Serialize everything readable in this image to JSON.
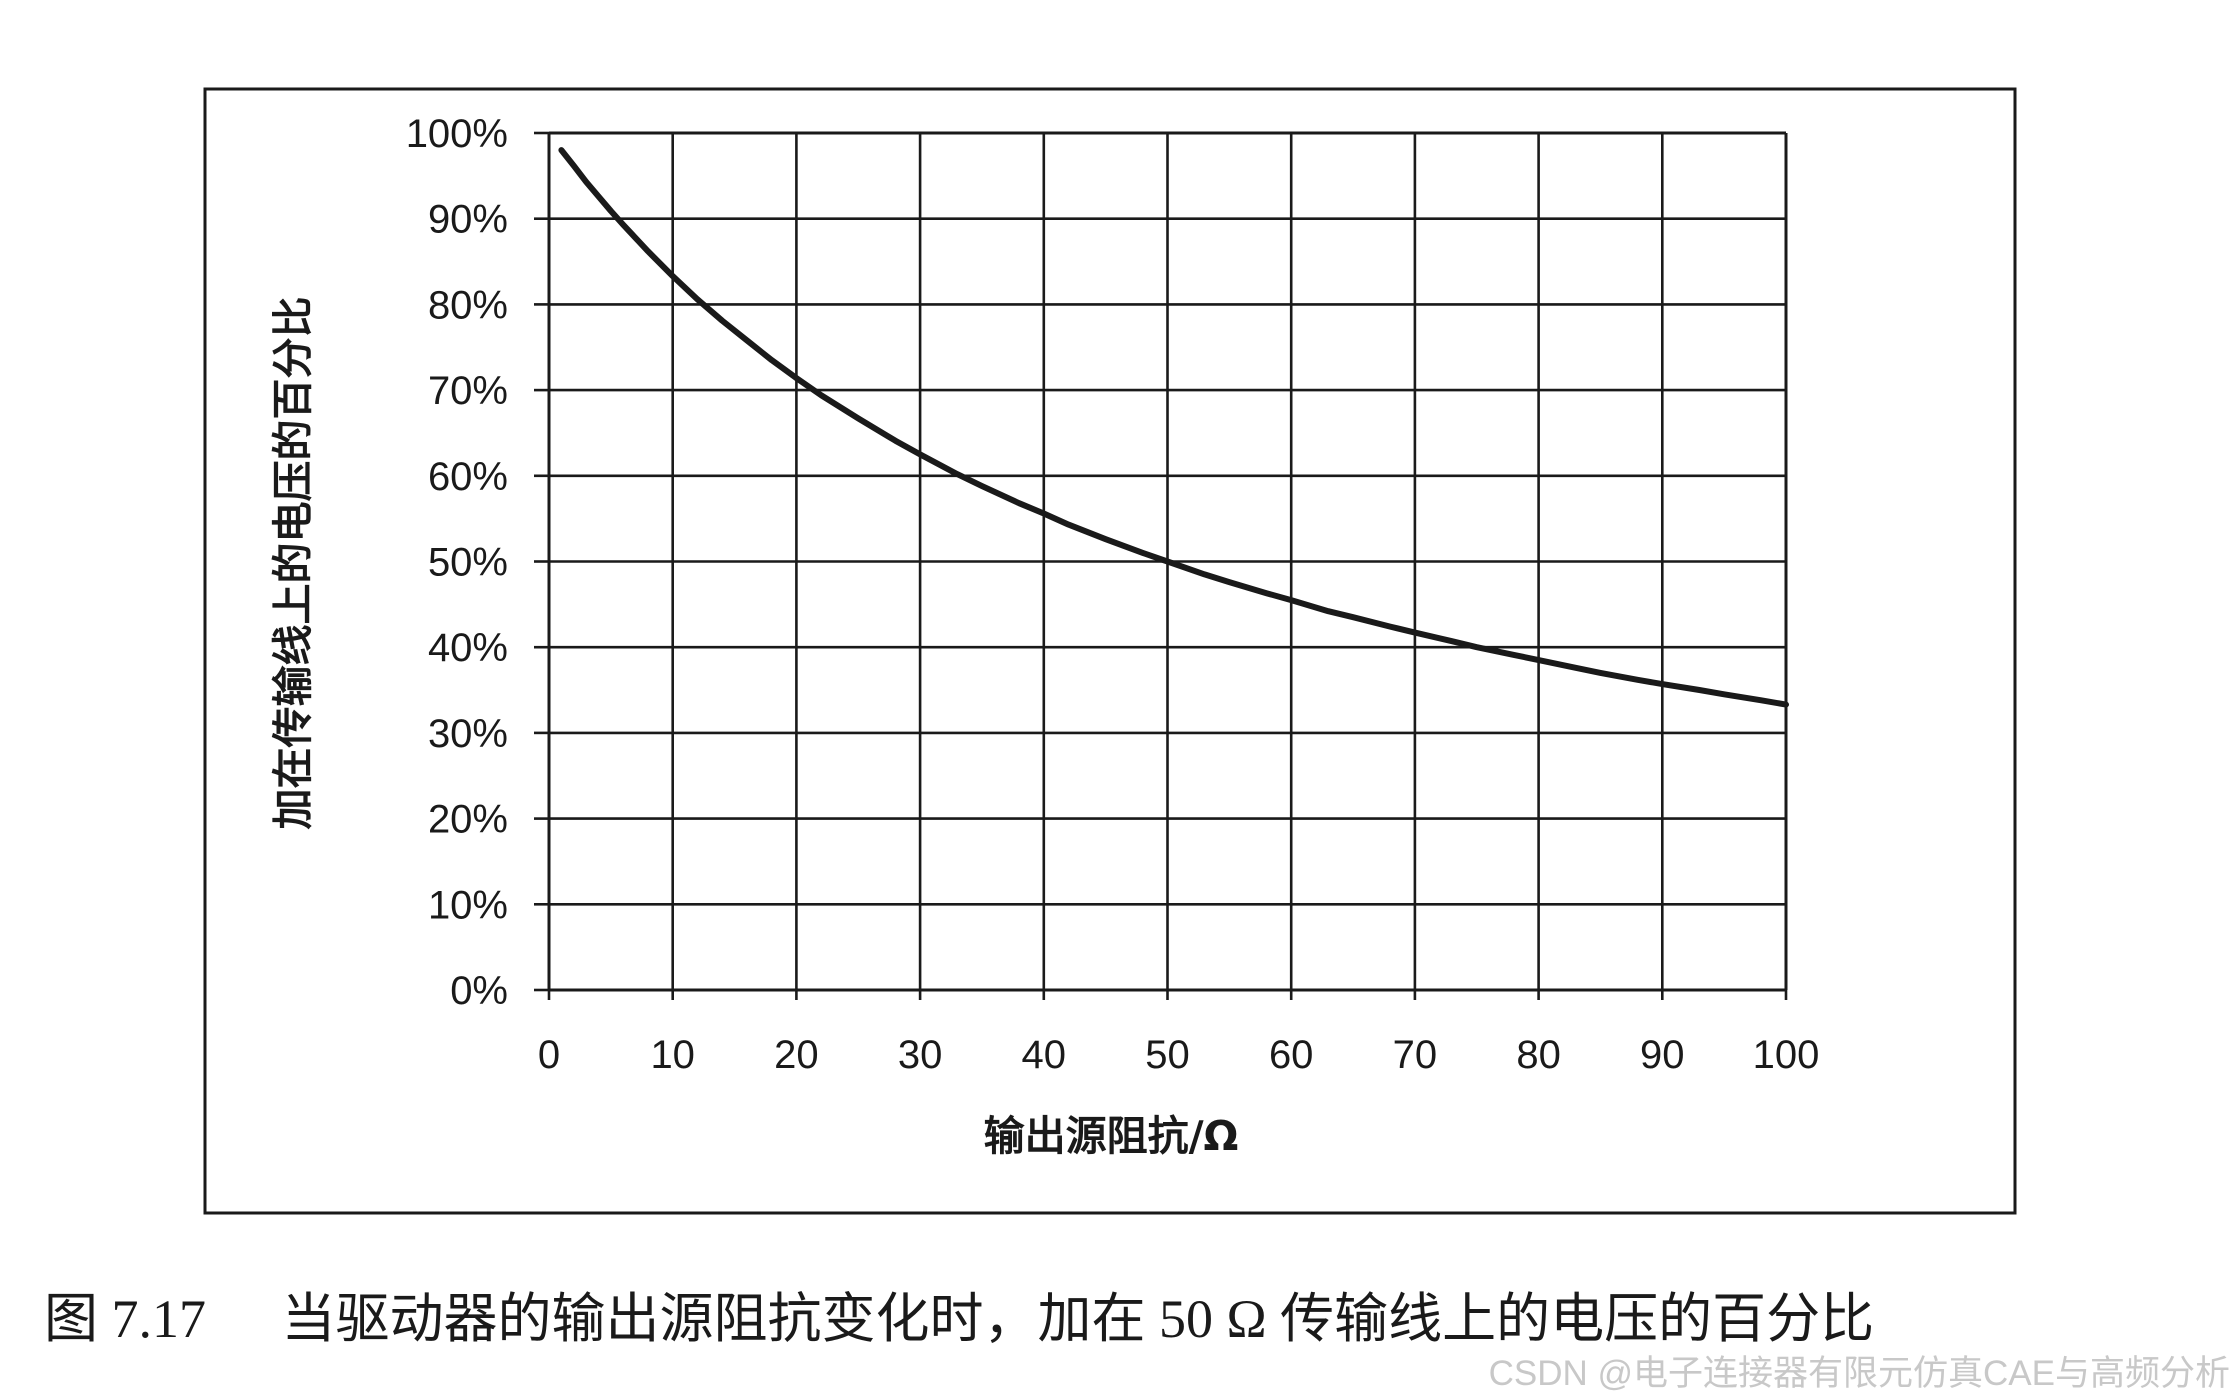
{
  "chart_data": {
    "type": "line",
    "title": "",
    "xlabel": "输出源阻抗/Ω",
    "ylabel": "加在传输线上的电压的百分比",
    "xlim": [
      0,
      100
    ],
    "ylim": [
      0,
      100
    ],
    "x_ticks": [
      "0",
      "10",
      "20",
      "30",
      "40",
      "50",
      "60",
      "70",
      "80",
      "90",
      "100"
    ],
    "y_ticks": [
      "0%",
      "10%",
      "20%",
      "30%",
      "40%",
      "50%",
      "60%",
      "70%",
      "80%",
      "90%",
      "100%"
    ],
    "grid": true,
    "legend": "none",
    "series": [
      {
        "color": "#1a1a1a",
        "x": [
          1,
          2,
          3,
          4,
          5,
          6,
          8,
          10,
          12,
          14,
          16,
          18,
          20,
          22,
          25,
          28,
          30,
          33,
          35,
          38,
          40,
          42,
          45,
          48,
          50,
          53,
          55,
          58,
          60,
          63,
          65,
          68,
          70,
          73,
          75,
          78,
          80,
          83,
          85,
          88,
          90,
          93,
          95,
          98,
          100
        ],
        "values": [
          98.0,
          96.2,
          94.3,
          92.6,
          90.9,
          89.3,
          86.2,
          83.3,
          80.6,
          78.1,
          75.8,
          73.5,
          71.4,
          69.4,
          66.7,
          64.1,
          62.5,
          60.2,
          58.8,
          56.8,
          55.6,
          54.3,
          52.6,
          51.0,
          50.0,
          48.5,
          47.6,
          46.3,
          45.5,
          44.2,
          43.5,
          42.4,
          41.7,
          40.7,
          40.0,
          39.1,
          38.5,
          37.6,
          37.0,
          36.2,
          35.7,
          35.0,
          34.5,
          33.8,
          33.3
        ]
      }
    ]
  },
  "caption": {
    "figure_no": "图 7.17",
    "text_before": "当驱动器的输出源阻抗变化时，加在 ",
    "text_value": "50 Ω",
    "text_after": " 传输线上的电压的百分比"
  },
  "watermark": "CSDN @电子连接器有限元仿真CAE与高频分析",
  "colors": {
    "frame": "#1a1a1a",
    "grid": "#1a1a1a",
    "curve": "#1a1a1a",
    "text": "#1a1a1a",
    "watermark": "#c8c8c8"
  }
}
